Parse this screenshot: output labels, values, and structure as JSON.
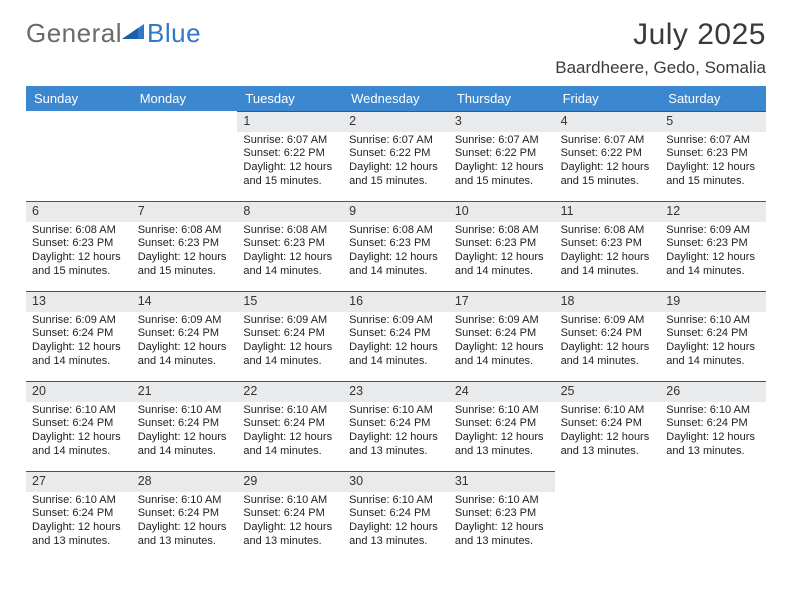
{
  "logo": {
    "part1": "General",
    "part2": "Blue"
  },
  "title": "July 2025",
  "location": "Baardheere, Gedo, Somalia",
  "dow": [
    "Sunday",
    "Monday",
    "Tuesday",
    "Wednesday",
    "Thursday",
    "Friday",
    "Saturday"
  ],
  "colors": {
    "header_bg": "#3b88d1",
    "cell_border": "#2a5c92",
    "daynum_bg": "#e9eaec",
    "logo_accent": "#2f79c4"
  },
  "first_weekday_index": 2,
  "days": [
    {
      "n": 1,
      "sunrise": "6:07 AM",
      "sunset": "6:22 PM",
      "dl": "12 hours and 15 minutes."
    },
    {
      "n": 2,
      "sunrise": "6:07 AM",
      "sunset": "6:22 PM",
      "dl": "12 hours and 15 minutes."
    },
    {
      "n": 3,
      "sunrise": "6:07 AM",
      "sunset": "6:22 PM",
      "dl": "12 hours and 15 minutes."
    },
    {
      "n": 4,
      "sunrise": "6:07 AM",
      "sunset": "6:22 PM",
      "dl": "12 hours and 15 minutes."
    },
    {
      "n": 5,
      "sunrise": "6:07 AM",
      "sunset": "6:23 PM",
      "dl": "12 hours and 15 minutes."
    },
    {
      "n": 6,
      "sunrise": "6:08 AM",
      "sunset": "6:23 PM",
      "dl": "12 hours and 15 minutes."
    },
    {
      "n": 7,
      "sunrise": "6:08 AM",
      "sunset": "6:23 PM",
      "dl": "12 hours and 15 minutes."
    },
    {
      "n": 8,
      "sunrise": "6:08 AM",
      "sunset": "6:23 PM",
      "dl": "12 hours and 14 minutes."
    },
    {
      "n": 9,
      "sunrise": "6:08 AM",
      "sunset": "6:23 PM",
      "dl": "12 hours and 14 minutes."
    },
    {
      "n": 10,
      "sunrise": "6:08 AM",
      "sunset": "6:23 PM",
      "dl": "12 hours and 14 minutes."
    },
    {
      "n": 11,
      "sunrise": "6:08 AM",
      "sunset": "6:23 PM",
      "dl": "12 hours and 14 minutes."
    },
    {
      "n": 12,
      "sunrise": "6:09 AM",
      "sunset": "6:23 PM",
      "dl": "12 hours and 14 minutes."
    },
    {
      "n": 13,
      "sunrise": "6:09 AM",
      "sunset": "6:24 PM",
      "dl": "12 hours and 14 minutes."
    },
    {
      "n": 14,
      "sunrise": "6:09 AM",
      "sunset": "6:24 PM",
      "dl": "12 hours and 14 minutes."
    },
    {
      "n": 15,
      "sunrise": "6:09 AM",
      "sunset": "6:24 PM",
      "dl": "12 hours and 14 minutes."
    },
    {
      "n": 16,
      "sunrise": "6:09 AM",
      "sunset": "6:24 PM",
      "dl": "12 hours and 14 minutes."
    },
    {
      "n": 17,
      "sunrise": "6:09 AM",
      "sunset": "6:24 PM",
      "dl": "12 hours and 14 minutes."
    },
    {
      "n": 18,
      "sunrise": "6:09 AM",
      "sunset": "6:24 PM",
      "dl": "12 hours and 14 minutes."
    },
    {
      "n": 19,
      "sunrise": "6:10 AM",
      "sunset": "6:24 PM",
      "dl": "12 hours and 14 minutes."
    },
    {
      "n": 20,
      "sunrise": "6:10 AM",
      "sunset": "6:24 PM",
      "dl": "12 hours and 14 minutes."
    },
    {
      "n": 21,
      "sunrise": "6:10 AM",
      "sunset": "6:24 PM",
      "dl": "12 hours and 14 minutes."
    },
    {
      "n": 22,
      "sunrise": "6:10 AM",
      "sunset": "6:24 PM",
      "dl": "12 hours and 14 minutes."
    },
    {
      "n": 23,
      "sunrise": "6:10 AM",
      "sunset": "6:24 PM",
      "dl": "12 hours and 13 minutes."
    },
    {
      "n": 24,
      "sunrise": "6:10 AM",
      "sunset": "6:24 PM",
      "dl": "12 hours and 13 minutes."
    },
    {
      "n": 25,
      "sunrise": "6:10 AM",
      "sunset": "6:24 PM",
      "dl": "12 hours and 13 minutes."
    },
    {
      "n": 26,
      "sunrise": "6:10 AM",
      "sunset": "6:24 PM",
      "dl": "12 hours and 13 minutes."
    },
    {
      "n": 27,
      "sunrise": "6:10 AM",
      "sunset": "6:24 PM",
      "dl": "12 hours and 13 minutes."
    },
    {
      "n": 28,
      "sunrise": "6:10 AM",
      "sunset": "6:24 PM",
      "dl": "12 hours and 13 minutes."
    },
    {
      "n": 29,
      "sunrise": "6:10 AM",
      "sunset": "6:24 PM",
      "dl": "12 hours and 13 minutes."
    },
    {
      "n": 30,
      "sunrise": "6:10 AM",
      "sunset": "6:24 PM",
      "dl": "12 hours and 13 minutes."
    },
    {
      "n": 31,
      "sunrise": "6:10 AM",
      "sunset": "6:23 PM",
      "dl": "12 hours and 13 minutes."
    }
  ],
  "labels": {
    "sunrise": "Sunrise:",
    "sunset": "Sunset:",
    "daylight": "Daylight:"
  }
}
